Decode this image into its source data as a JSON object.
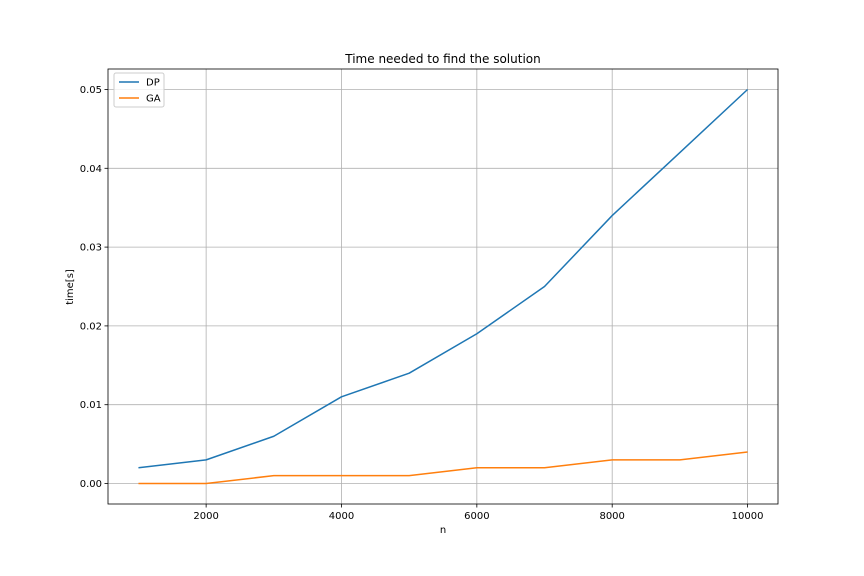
{
  "chart_data": {
    "type": "line",
    "title": "Time needed to find the solution",
    "xlabel": "n",
    "ylabel": "time[s]",
    "xlim": [
      550,
      10450
    ],
    "ylim": [
      -0.0026,
      0.0526
    ],
    "xticks": [
      2000,
      4000,
      6000,
      8000,
      10000
    ],
    "xtick_labels": [
      "2000",
      "4000",
      "6000",
      "8000",
      "10000"
    ],
    "yticks": [
      0.0,
      0.01,
      0.02,
      0.03,
      0.04,
      0.05
    ],
    "ytick_labels": [
      "0.00",
      "0.01",
      "0.02",
      "0.03",
      "0.04",
      "0.05"
    ],
    "grid": true,
    "legend_position": "top-left",
    "x": [
      1000,
      2000,
      3000,
      4000,
      5000,
      6000,
      7000,
      8000,
      9000,
      10000
    ],
    "series": [
      {
        "name": "DP",
        "color": "#1f77b4",
        "values": [
          0.002,
          0.003,
          0.006,
          0.011,
          0.014,
          0.019,
          0.025,
          0.034,
          0.042,
          0.05
        ]
      },
      {
        "name": "GA",
        "color": "#ff7f0e",
        "values": [
          0.0,
          0.0,
          0.001,
          0.001,
          0.001,
          0.002,
          0.002,
          0.003,
          0.003,
          0.004
        ]
      }
    ]
  }
}
